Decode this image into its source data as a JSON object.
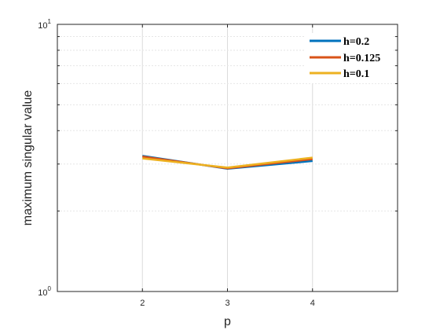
{
  "chart_data": {
    "type": "line",
    "title": "",
    "xlabel": "p",
    "ylabel": "maximum singular value",
    "y_scale": "log",
    "xlim": [
      1,
      5
    ],
    "ylim": [
      1,
      10
    ],
    "x_ticks": [
      2,
      3,
      4
    ],
    "x_tick_labels": [
      "2",
      "3",
      "4"
    ],
    "y_tick_labels": [
      {
        "base": "10",
        "exp": "0"
      },
      {
        "base": "10",
        "exp": "1"
      }
    ],
    "grid": true,
    "legend_position": "top-right",
    "series": [
      {
        "name": "h=0.2",
        "color": "#0072BD",
        "x": [
          2,
          3,
          4
        ],
        "y": [
          3.22,
          2.88,
          3.08
        ]
      },
      {
        "name": "h=0.125",
        "color": "#D95319",
        "x": [
          2,
          3,
          4
        ],
        "y": [
          3.2,
          2.89,
          3.13
        ]
      },
      {
        "name": "h=0.1",
        "color": "#EDB120",
        "x": [
          2,
          3,
          4
        ],
        "y": [
          3.15,
          2.91,
          3.17
        ]
      }
    ]
  }
}
